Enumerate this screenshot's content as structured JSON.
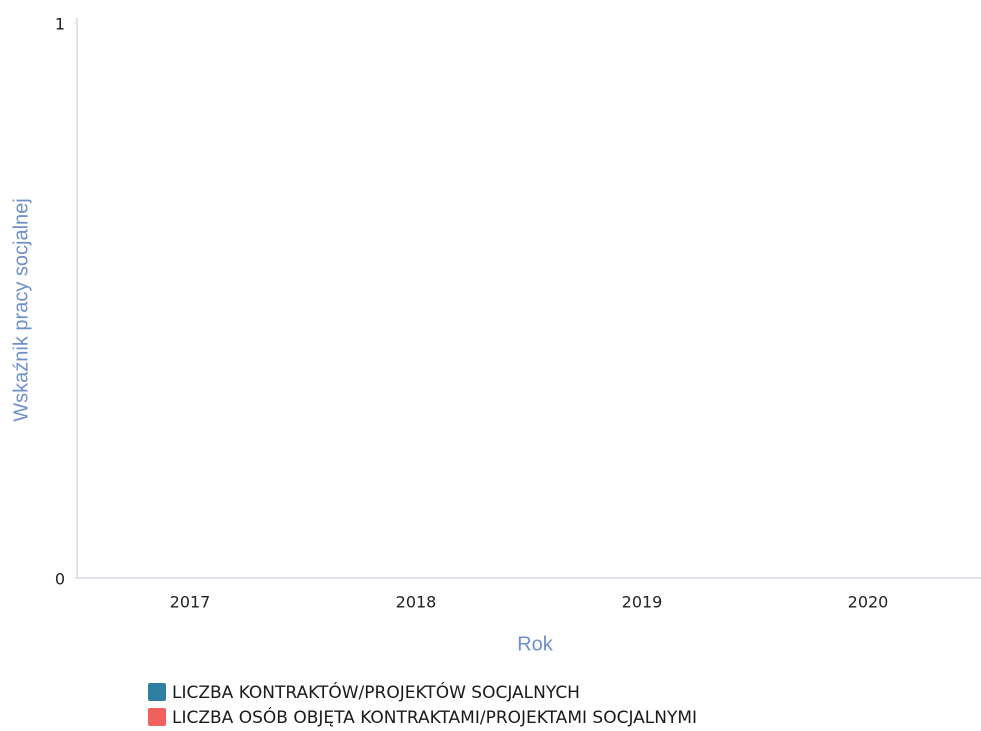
{
  "chart_data": {
    "type": "bar",
    "x_label": "Rok",
    "y_label": "Wskaźnik pracy socjalnej",
    "categories": [
      "2017",
      "2018",
      "2019",
      "2020"
    ],
    "series": [
      {
        "name": "LICZBA KONTRAKTÓW/PROJEKTÓW SOCJALNYCH",
        "color": "#2f7fa3",
        "values": [
          0,
          0,
          0,
          0
        ]
      },
      {
        "name": "LICZBA OSÓB OBJĘTA KONTRAKTAMI/PROJEKTAMI SOCJALNYMI",
        "color": "#f0605f",
        "values": [
          0,
          0,
          0,
          0
        ]
      }
    ],
    "ylim": [
      0,
      1
    ],
    "yticks": [
      0,
      1
    ]
  }
}
